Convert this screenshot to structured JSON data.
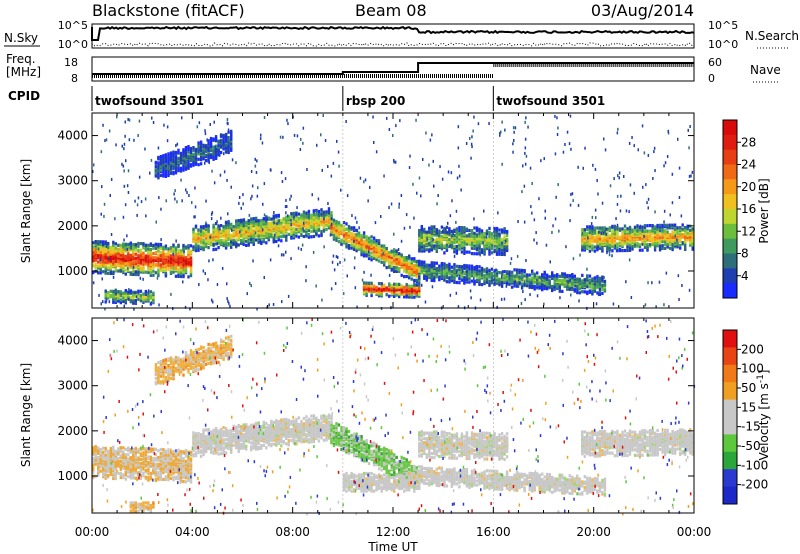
{
  "header": {
    "radar": "Blackstone (fitACF)",
    "beam": "Beam 08",
    "date": "03/Aug/2014"
  },
  "top_panels": {
    "nsky_label": "N.Sky",
    "nsky_ticks": [
      "10^5",
      "10^0"
    ],
    "nsearch_label": "N.Search",
    "nsearch_ticks": [
      "10^5",
      "10^0"
    ],
    "freq_label_line1": "Freq.",
    "freq_label_line2": "[MHz]",
    "freq_ticks": [
      "18",
      "8"
    ],
    "nave_label": "Nave",
    "nave_ticks": [
      "60",
      "0"
    ],
    "cpid_label": "CPID",
    "cpid_segments": [
      {
        "name": "twofsound 3501",
        "start_hour": 0,
        "end_hour": 10
      },
      {
        "name": "rbsp 200",
        "start_hour": 10,
        "end_hour": 16
      },
      {
        "name": "twofsound 3501",
        "start_hour": 16,
        "end_hour": 24
      }
    ]
  },
  "chart_data": [
    {
      "type": "heatmap",
      "name": "power",
      "ylabel": "Slant Range [km]",
      "xlabel": "",
      "xlim": [
        0,
        24
      ],
      "ylim": [
        180,
        4500
      ],
      "yticks": [
        1000,
        2000,
        3000,
        4000
      ],
      "colorbar_label": "Power [dB]",
      "colorbar_ticks": [
        4,
        8,
        12,
        16,
        20,
        24,
        28
      ],
      "colorbar_colors": [
        "#1a2bff",
        "#1f3fb0",
        "#2e6e7a",
        "#3f9a5e",
        "#6cbf3c",
        "#bfd530",
        "#f0c020",
        "#f59a18",
        "#f06a16",
        "#e83e14",
        "#e01c10",
        "#d80a0a"
      ],
      "bands": [
        {
          "t0": 0.0,
          "t1": 4.0,
          "r0": 1350,
          "r1": 1250,
          "w": 350,
          "peak": 0.95
        },
        {
          "t0": 4.0,
          "t1": 9.5,
          "r0": 1750,
          "r1": 2150,
          "w": 300,
          "peak": 0.6
        },
        {
          "t0": 9.5,
          "t1": 13.0,
          "r0": 2000,
          "r1": 1000,
          "w": 260,
          "peak": 0.75
        },
        {
          "t0": 10.8,
          "t1": 13.0,
          "r0": 650,
          "r1": 600,
          "w": 150,
          "peak": 0.95
        },
        {
          "t0": 13.0,
          "t1": 16.5,
          "r0": 1750,
          "r1": 1700,
          "w": 300,
          "peak": 0.45
        },
        {
          "t0": 13.0,
          "t1": 20.5,
          "r0": 1050,
          "r1": 700,
          "w": 200,
          "peak": 0.35
        },
        {
          "t0": 19.5,
          "t1": 24.0,
          "r0": 1750,
          "r1": 1800,
          "w": 280,
          "peak": 0.65
        },
        {
          "t0": 2.5,
          "t1": 5.5,
          "r0": 3300,
          "r1": 3900,
          "w": 250,
          "peak": 0.2
        },
        {
          "t0": 0.5,
          "t1": 2.5,
          "r0": 500,
          "r1": 450,
          "w": 150,
          "peak": 0.45
        }
      ]
    },
    {
      "type": "heatmap",
      "name": "velocity",
      "ylabel": "Slant Range [km]",
      "xlabel": "Time UT",
      "xlim": [
        0,
        24
      ],
      "ylim": [
        180,
        4500
      ],
      "yticks": [
        1000,
        2000,
        3000,
        4000
      ],
      "xticks": [
        "00:00",
        "04:00",
        "08:00",
        "12:00",
        "16:00",
        "20:00",
        "00:00"
      ],
      "colorbar_label": "Velocity [m s^-1]",
      "colorbar_ticks": [
        200,
        100,
        50,
        15,
        -15,
        -50,
        -100,
        -200
      ],
      "colorbar_colors": [
        "#1c28c8",
        "#2a3ad0",
        "#2aa63a",
        "#5ec83c",
        "#c8c8c8",
        "#c8c8c8",
        "#f0a020",
        "#f07a18",
        "#e84414",
        "#e01010"
      ],
      "bands": [
        {
          "t0": 0.0,
          "t1": 4.0,
          "r0": 1350,
          "r1": 1250,
          "w": 350,
          "v": "gray_orange"
        },
        {
          "t0": 4.0,
          "t1": 9.5,
          "r0": 1750,
          "r1": 2150,
          "w": 300,
          "v": "gray"
        },
        {
          "t0": 9.5,
          "t1": 13.0,
          "r0": 2000,
          "r1": 1000,
          "w": 260,
          "v": "green"
        },
        {
          "t0": 10.0,
          "t1": 13.0,
          "r0": 900,
          "r1": 900,
          "w": 200,
          "v": "gray"
        },
        {
          "t0": 13.0,
          "t1": 16.5,
          "r0": 1750,
          "r1": 1700,
          "w": 300,
          "v": "gray"
        },
        {
          "t0": 13.0,
          "t1": 20.5,
          "r0": 1050,
          "r1": 800,
          "w": 200,
          "v": "gray"
        },
        {
          "t0": 19.5,
          "t1": 24.0,
          "r0": 1750,
          "r1": 1800,
          "w": 280,
          "v": "gray"
        },
        {
          "t0": 2.5,
          "t1": 5.5,
          "r0": 3300,
          "r1": 3900,
          "w": 250,
          "v": "orange"
        },
        {
          "t0": 1.5,
          "t1": 2.5,
          "r0": 350,
          "r1": 350,
          "w": 120,
          "v": "orange"
        }
      ]
    }
  ]
}
